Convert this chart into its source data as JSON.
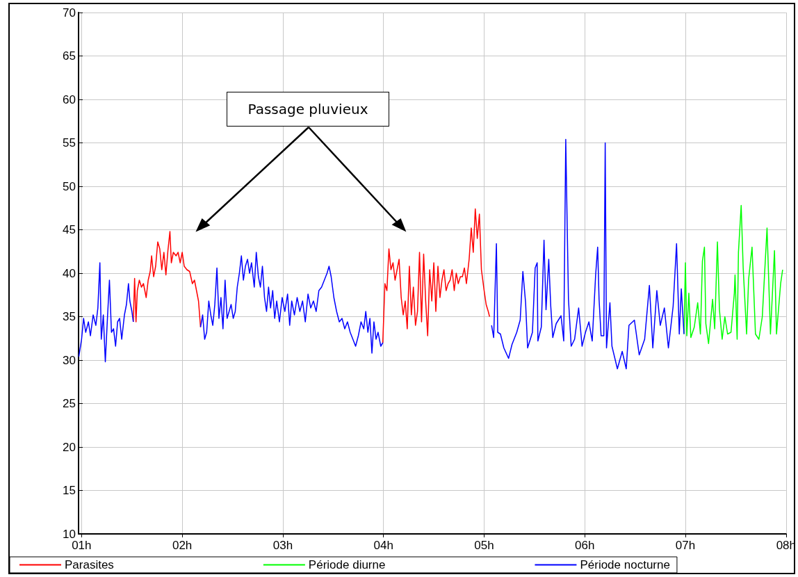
{
  "chart_data": {
    "type": "line",
    "xlim": [
      0.97,
      8.0
    ],
    "xticks": [
      {
        "value": 1,
        "label": "01h"
      },
      {
        "value": 2,
        "label": "02h"
      },
      {
        "value": 3,
        "label": "03h"
      },
      {
        "value": 4,
        "label": "04h"
      },
      {
        "value": 5,
        "label": "05h"
      },
      {
        "value": 6,
        "label": "06h"
      },
      {
        "value": 7,
        "label": "07h"
      },
      {
        "value": 8,
        "label": "08h"
      }
    ],
    "ylim": [
      10,
      70
    ],
    "yticks": [
      10,
      15,
      20,
      25,
      30,
      35,
      40,
      45,
      50,
      55,
      60,
      65,
      70
    ],
    "grid": true,
    "legend": "bottom",
    "marker": "none",
    "line_style": "solid",
    "annotations": [
      "Passage pluvieux"
    ],
    "series": [
      {
        "name": "Parasites",
        "color": "#ff0000",
        "x": [
          1.514,
          1.527,
          1.541,
          1.554,
          1.574,
          1.595,
          1.615,
          1.642,
          1.662,
          1.682,
          1.696,
          1.716,
          1.736,
          1.757,
          1.777,
          1.797,
          1.818,
          1.838,
          1.858,
          1.878,
          1.892,
          1.912,
          1.939,
          1.959,
          1.98,
          2.0,
          2.02,
          2.047,
          2.074,
          2.101,
          2.122,
          2.142,
          2.162,
          2.182,
          3.0,
          3.993,
          4.014,
          4.034,
          4.054,
          4.074,
          4.095,
          4.115,
          4.135,
          4.155,
          4.176,
          4.196,
          4.216,
          4.236,
          4.257,
          4.277,
          4.297,
          4.318,
          4.338,
          4.358,
          4.378,
          4.399,
          4.419,
          4.439,
          4.459,
          4.48,
          4.5,
          4.52,
          4.541,
          4.561,
          4.581,
          4.601,
          4.622,
          4.642,
          4.662,
          4.682,
          4.703,
          4.723,
          4.743,
          4.764,
          4.784,
          4.804,
          4.824,
          4.851,
          4.872,
          4.892,
          4.912,
          4.932,
          4.953,
          4.973,
          5.0,
          5.02,
          5.041,
          5.054
        ],
        "values": [
          34.4,
          39.4,
          34.4,
          38,
          39.2,
          38.4,
          38.8,
          37.2,
          39.2,
          40.2,
          42,
          39.6,
          40.8,
          43.6,
          42.8,
          40.4,
          42.4,
          39.8,
          42.6,
          44.8,
          41.2,
          42.4,
          42,
          42.4,
          41.2,
          42.4,
          40.8,
          40.4,
          40.2,
          38.8,
          39.2,
          38,
          36.8,
          33.8,
          null,
          32,
          38.8,
          38,
          42.8,
          40.4,
          41.2,
          39.2,
          40.4,
          41.6,
          37.2,
          35.2,
          36.8,
          33.6,
          40.8,
          35.2,
          38.4,
          34,
          35.6,
          42.4,
          34.4,
          42.2,
          36.8,
          32.8,
          40.4,
          36.8,
          41.2,
          35.6,
          40.8,
          37.2,
          39.2,
          40.4,
          38,
          38.8,
          39.2,
          40.4,
          38,
          40,
          38.8,
          39.6,
          39.6,
          40.6,
          38.8,
          41.6,
          45.2,
          42.4,
          47.4,
          44,
          46.8,
          40.4,
          38,
          36.4,
          35.6,
          35
        ]
      },
      {
        "name": "Période diurne",
        "color": "#00ff00",
        "x": [
          6.986,
          7.0,
          7.014,
          7.034,
          7.054,
          7.088,
          7.122,
          7.149,
          7.169,
          7.189,
          7.203,
          7.23,
          7.27,
          7.291,
          7.318,
          7.338,
          7.365,
          7.392,
          7.419,
          7.453,
          7.486,
          7.493,
          7.514,
          7.527,
          7.554,
          7.574,
          7.608,
          7.628,
          7.662,
          7.696,
          7.73,
          7.764,
          7.811,
          7.845,
          7.885,
          7.905,
          7.946,
          7.966
        ],
        "values": [
          33,
          41.2,
          32.8,
          37.7,
          32.6,
          33.8,
          36.6,
          33,
          41.4,
          43,
          34.2,
          31.9,
          37,
          33.6,
          43.6,
          35.8,
          32.4,
          35,
          33,
          33.2,
          37.7,
          39.8,
          32.4,
          42.4,
          47.8,
          40.6,
          33,
          39.3,
          43,
          33,
          32.4,
          35,
          45.2,
          33,
          42.6,
          33,
          38.8,
          40.4
        ]
      },
      {
        "name": "Période nocturne",
        "color": "#0000ff",
        "x": [
          0.973,
          1.0,
          1.02,
          1.041,
          1.068,
          1.088,
          1.115,
          1.142,
          1.162,
          1.182,
          1.196,
          1.216,
          1.236,
          1.257,
          1.277,
          1.297,
          1.318,
          1.338,
          1.358,
          1.378,
          1.399,
          1.426,
          1.446,
          1.466,
          1.48,
          1.5,
          1.514,
          1.85,
          2.182,
          2.203,
          2.223,
          2.243,
          2.264,
          2.284,
          2.304,
          2.324,
          2.345,
          2.365,
          2.385,
          2.405,
          2.426,
          2.446,
          2.466,
          2.486,
          2.507,
          2.527,
          2.547,
          2.568,
          2.588,
          2.608,
          2.628,
          2.649,
          2.669,
          2.689,
          2.716,
          2.736,
          2.757,
          2.777,
          2.797,
          2.818,
          2.838,
          2.858,
          2.878,
          2.899,
          2.919,
          2.939,
          2.966,
          2.993,
          3.02,
          3.047,
          3.068,
          3.088,
          3.115,
          3.142,
          3.169,
          3.196,
          3.223,
          3.25,
          3.277,
          3.304,
          3.331,
          3.358,
          3.385,
          3.412,
          3.439,
          3.459,
          3.48,
          3.507,
          3.534,
          3.561,
          3.588,
          3.615,
          3.642,
          3.669,
          3.696,
          3.723,
          3.75,
          3.777,
          3.804,
          3.824,
          3.845,
          3.865,
          3.885,
          3.905,
          3.926,
          3.946,
          3.973,
          3.993,
          4.5,
          5.074,
          5.095,
          5.122,
          5.135,
          5.162,
          5.196,
          5.243,
          5.277,
          5.324,
          5.358,
          5.385,
          5.412,
          5.432,
          5.48,
          5.507,
          5.527,
          5.534,
          5.568,
          5.595,
          5.615,
          5.642,
          5.662,
          5.682,
          5.716,
          5.764,
          5.791,
          5.811,
          5.824,
          5.838,
          5.865,
          5.899,
          5.939,
          5.973,
          6.007,
          6.041,
          6.074,
          6.108,
          6.128,
          6.142,
          6.162,
          6.189,
          6.203,
          6.216,
          6.25,
          6.27,
          6.324,
          6.372,
          6.412,
          6.439,
          6.493,
          6.541,
          6.595,
          6.642,
          6.676,
          6.716,
          6.75,
          6.791,
          6.831,
          6.878,
          6.912,
          6.939,
          6.959,
          6.986
        ],
        "values": [
          30.4,
          32.4,
          34.8,
          33.2,
          34.4,
          32.8,
          35.2,
          34,
          36,
          41.2,
          32.4,
          35.2,
          29.8,
          34.8,
          39.2,
          33.2,
          33.6,
          31.6,
          34.4,
          34.8,
          32.4,
          35.2,
          36.4,
          38.8,
          36.8,
          35.6,
          34.4,
          null,
          33.8,
          35.2,
          32.4,
          33.2,
          36.8,
          35.2,
          34,
          36.4,
          40.6,
          34.8,
          37.2,
          33.6,
          39.2,
          34.8,
          35.6,
          36.4,
          34.8,
          35.6,
          38.4,
          40,
          42,
          39.2,
          40.8,
          41.6,
          40,
          41.2,
          38.4,
          42.4,
          39.6,
          38.4,
          40.8,
          37.2,
          35.6,
          38.4,
          36,
          38,
          34.8,
          36.8,
          34.4,
          37.2,
          35.6,
          37.6,
          34,
          36.8,
          35.2,
          37.2,
          35.6,
          36.8,
          34.4,
          37.6,
          36,
          36.8,
          35.6,
          38,
          38.4,
          39.2,
          40,
          40.8,
          39.6,
          37.2,
          35.6,
          34.4,
          34.8,
          33.6,
          34.4,
          33.2,
          32.4,
          31.6,
          32.8,
          34.4,
          33.6,
          35.6,
          33.2,
          34.8,
          30.8,
          34.4,
          32.4,
          33.2,
          31.6,
          32,
          null,
          34,
          32.6,
          43.4,
          33.2,
          33,
          31.4,
          30.2,
          31.8,
          33.2,
          34.6,
          40.2,
          36.6,
          31.4,
          33.2,
          40.6,
          41.2,
          32.2,
          33.8,
          43.8,
          35.8,
          41.6,
          36.2,
          32.6,
          34.2,
          35.1,
          32.2,
          55.4,
          46.4,
          37,
          31.6,
          32.4,
          36,
          31.6,
          33.2,
          34.4,
          32.2,
          39.8,
          43,
          37,
          32.8,
          32.8,
          55,
          31.4,
          36.6,
          31.6,
          29,
          31,
          29,
          34,
          34.6,
          30.6,
          32.4,
          38.6,
          31.4,
          38,
          34,
          36,
          31.4,
          36.2,
          43.4,
          33,
          38.2,
          33
        ]
      }
    ]
  }
}
